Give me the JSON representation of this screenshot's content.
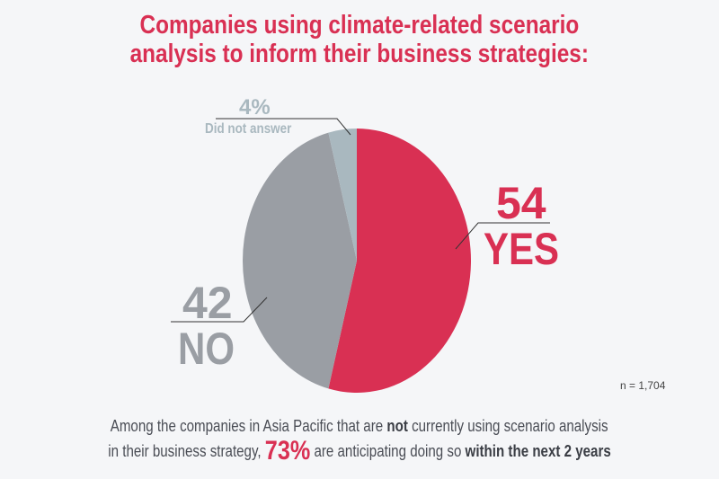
{
  "title": {
    "line1": "Companies using climate-related scenario",
    "line2": "analysis to inform their business strategies:"
  },
  "chart_data": {
    "type": "pie",
    "title": "Companies using climate-related scenario analysis to inform their business strategies:",
    "slices": [
      {
        "label": "YES",
        "value": 54,
        "value_label": "54",
        "color": "#d93053"
      },
      {
        "label": "NO",
        "value": 42,
        "value_label": "42",
        "color": "#9a9ea4"
      },
      {
        "label": "Did not answer",
        "value": 4,
        "value_label": "4%",
        "color": "#a9b8bf"
      }
    ],
    "note": "n = 1,704"
  },
  "footer": {
    "line1_a": "Among the companies in Asia Pacific that are ",
    "line1_bold": "not",
    "line1_b": " currently using scenario analysis",
    "line2_a": "in their business strategy, ",
    "highlight": "73%",
    "line2_b": " are anticipating doing so ",
    "line2_bold": "within the next 2 years"
  }
}
